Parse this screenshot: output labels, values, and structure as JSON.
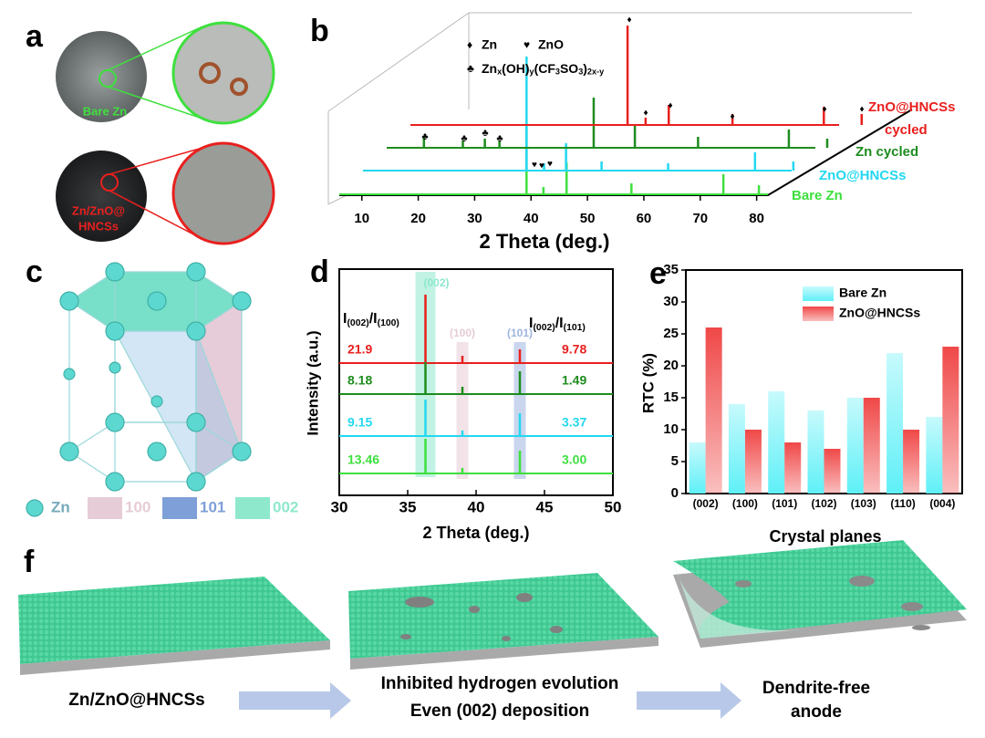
{
  "panels": {
    "a": {
      "letter": "a",
      "top_label": "Bare Zn",
      "bottom_label": [
        "Zn/ZnO@",
        "HNCSs"
      ]
    },
    "b": {
      "letter": "b",
      "xlabel": "2 Theta (deg.)",
      "xlim": [
        6,
        82
      ],
      "xticks": [
        10,
        20,
        30,
        40,
        50,
        60,
        70,
        80
      ],
      "legend": [
        {
          "symbol": "♦",
          "text": "Zn"
        },
        {
          "symbol": "♥",
          "text": "ZnO"
        },
        {
          "symbol": "♣",
          "parts": [
            {
              "t": "Zn",
              "sub": false
            },
            {
              "t": "x",
              "sub": true
            },
            {
              "t": "(OH)",
              "sub": false
            },
            {
              "t": "y",
              "sub": true
            },
            {
              "t": "(CF",
              "sub": false
            },
            {
              "t": "3",
              "sub": true
            },
            {
              "t": "SO",
              "sub": false
            },
            {
              "t": "3",
              "sub": true
            },
            {
              "t": ")",
              "sub": false
            },
            {
              "t": "2x-y",
              "sub": true
            }
          ]
        }
      ],
      "series": [
        {
          "name": "Bare Zn",
          "color": "#3ee03e",
          "peaks_x": [
            39.2,
            42.2,
            46.3,
            57.8,
            74.1,
            80.4
          ],
          "peaks_h": [
            75,
            8,
            35,
            12,
            22,
            10
          ]
        },
        {
          "name": "ZnO@HNCSs",
          "color": "#22d8f0",
          "peaks_x": [
            35,
            38.1,
            42,
            48.3,
            60.1,
            75.5,
            82.3
          ],
          "peaks_h": [
            125,
            8,
            30,
            10,
            8,
            20,
            10
          ]
        },
        {
          "name": "Zn cycled",
          "color": "#1e8c1e",
          "peaks_x": [
            12.6,
            19.5,
            23.4,
            26,
            42.7,
            50,
            61.2,
            77.3,
            84.1
          ],
          "peaks_h": [
            12,
            8,
            10,
            8,
            55,
            25,
            12,
            20,
            10
          ]
        },
        {
          "name": [
            "ZnO@HNCSs",
            "cycled"
          ],
          "color": "#e8201e",
          "peaks_x": [
            44.5,
            47.7,
            51.8,
            63.1,
            79.3,
            86
          ],
          "peaks_h": [
            109,
            8,
            22,
            12,
            20,
            12
          ]
        }
      ]
    },
    "c": {
      "letter": "c",
      "legend": [
        "Zn",
        "100",
        "101",
        "002"
      ]
    },
    "d": {
      "letter": "d",
      "ylabel": "Intensity (a.u.)",
      "xlabel": "2 Theta (deg.)",
      "xlim": [
        30,
        50
      ],
      "xticks": [
        30,
        35,
        40,
        45,
        50
      ],
      "peak_labels": [
        {
          "text": "(002)",
          "x": 36.3
        },
        {
          "text": "(100)",
          "x": 39
        },
        {
          "text": "(101)",
          "x": 43.2
        }
      ],
      "left_header": [
        {
          "t": "I",
          "sub": false
        },
        {
          "t": "(002)",
          "sub": true
        },
        {
          "t": "/I",
          "sub": false
        },
        {
          "t": "(100)",
          "sub": true
        }
      ],
      "right_header": [
        {
          "t": "I",
          "sub": false
        },
        {
          "t": "(002)",
          "sub": true
        },
        {
          "t": "/I",
          "sub": false
        },
        {
          "t": "(101)",
          "sub": true
        }
      ],
      "series": [
        {
          "color": "#e8201e",
          "left": "21.9",
          "right": "9.78",
          "peaks_h": [
            75,
            8,
            15
          ]
        },
        {
          "color": "#1e8c1e",
          "left": "8.18",
          "right": "1.49",
          "peaks_h": [
            35,
            8,
            25
          ]
        },
        {
          "color": "#22d8f0",
          "left": "9.15",
          "right": "3.37",
          "peaks_h": [
            40,
            6,
            25
          ]
        },
        {
          "color": "#3ee03e",
          "left": "13.46",
          "right": "3.00",
          "peaks_h": [
            38,
            6,
            25
          ]
        }
      ]
    },
    "e": {
      "letter": "e"
    },
    "f": {
      "letter": "f",
      "captions": [
        [
          "Zn/ZnO@HNCSs"
        ],
        [
          "Inhibited hydrogen evolution",
          "Even (002) deposition"
        ],
        [
          "Dendrite-free",
          "anode"
        ]
      ]
    }
  },
  "chart_data": {
    "type": "bar",
    "ylabel": "RTC (%)",
    "xlabel": "Crystal planes",
    "categories": [
      "(002)",
      "(100)",
      "(101)",
      "(102)",
      "(103)",
      "(110)",
      "(004)"
    ],
    "series": [
      {
        "name": "Bare Zn",
        "color": "#5ff0f7",
        "values": [
          8,
          14,
          16,
          13,
          15,
          22,
          12
        ]
      },
      {
        "name": "ZnO@HNCSs",
        "color": "#f04848",
        "values": [
          26,
          10,
          8,
          7,
          15,
          10,
          23
        ]
      }
    ],
    "ylim": [
      0,
      35
    ],
    "yticks": [
      0,
      5,
      10,
      15,
      20,
      25,
      30,
      35
    ],
    "legend": "upper right"
  }
}
